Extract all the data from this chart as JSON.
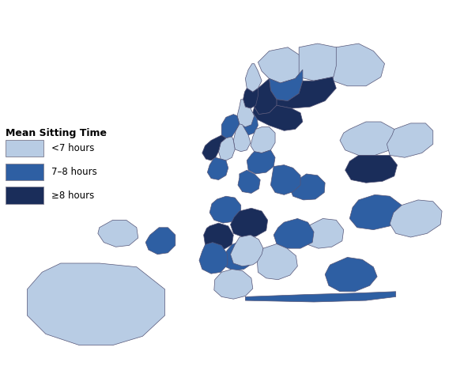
{
  "title": "Mean Sitting Time",
  "legend_labels": [
    "<7 hours",
    "7–8 hours",
    "≥8 hours"
  ],
  "colors": {
    "light": "#b8cce4",
    "medium": "#2e5fa3",
    "dark": "#1a2d5a",
    "nodata": "#cccccc"
  },
  "background_color": "#ffffff",
  "edge_color": "#555577",
  "edge_width": 0.5,
  "figsize": [
    5.68,
    4.87
  ],
  "dpi": 100,
  "legend_title": "Mean Sitting Time",
  "legend_title_fontsize": 9,
  "legend_fontsize": 8.5
}
